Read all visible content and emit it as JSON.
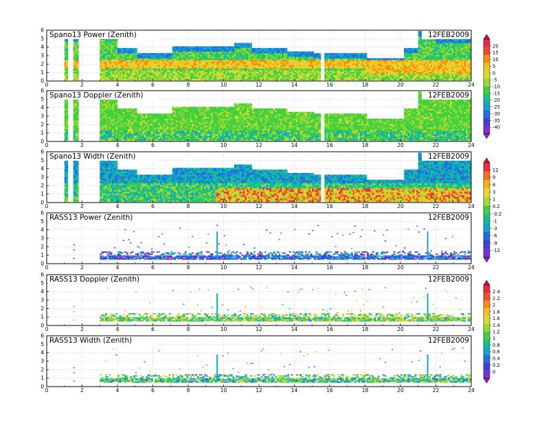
{
  "chart_data": [
    {
      "type": "heatmap",
      "title": "Spano13 Power (Zenith)",
      "date": "12FEB2009",
      "x_ticks": [
        "0",
        "2",
        "4",
        "6",
        "8",
        "10",
        "12",
        "14",
        "16",
        "18",
        "20",
        "22",
        "24"
      ],
      "y_ticks": [
        "0",
        "1",
        "2",
        "3",
        "4",
        "5",
        "6"
      ],
      "xlim": [
        0,
        24
      ],
      "ylim": [
        0,
        6
      ],
      "grid": true,
      "colorbar_group": 0
    },
    {
      "type": "heatmap",
      "title": "Spano13 Doppler (Zenith)",
      "date": "12FEB2009",
      "x_ticks": [
        "0",
        "2",
        "4",
        "6",
        "8",
        "10",
        "12",
        "14",
        "16",
        "18",
        "20",
        "22",
        "24"
      ],
      "y_ticks": [
        "0",
        "1",
        "2",
        "3",
        "4",
        "5",
        "6"
      ],
      "xlim": [
        0,
        24
      ],
      "ylim": [
        0,
        6
      ],
      "grid": true,
      "colorbar_group": 0
    },
    {
      "type": "heatmap",
      "title": "Spano13 Width (Zenith)",
      "date": "12FEB2009",
      "x_ticks": [
        "0",
        "2",
        "4",
        "6",
        "8",
        "10",
        "12",
        "14",
        "16",
        "18",
        "20",
        "22",
        "24"
      ],
      "y_ticks": [
        "0",
        "1",
        "2",
        "3",
        "4",
        "5",
        "6"
      ],
      "xlim": [
        0,
        24
      ],
      "ylim": [
        0,
        6
      ],
      "grid": true,
      "colorbar_group": 1
    },
    {
      "type": "heatmap",
      "title": "RASS13 Power (Zenith)",
      "date": "12FEB2009",
      "x_ticks": [
        "0",
        "2",
        "4",
        "6",
        "8",
        "10",
        "12",
        "14",
        "16",
        "18",
        "20",
        "22",
        "24"
      ],
      "y_ticks": [
        "0",
        "1",
        "2",
        "3",
        "4",
        "5",
        "6"
      ],
      "xlim": [
        0,
        24
      ],
      "ylim": [
        0,
        6
      ],
      "grid": true,
      "colorbar_group": 1
    },
    {
      "type": "heatmap",
      "title": "RASS13 Doppler (Zenith)",
      "date": "12FEB2009",
      "x_ticks": [
        "0",
        "2",
        "4",
        "6",
        "8",
        "10",
        "12",
        "14",
        "16",
        "18",
        "20",
        "22",
        "24"
      ],
      "y_ticks": [
        "0",
        "1",
        "2",
        "3",
        "4",
        "5",
        "6"
      ],
      "xlim": [
        0,
        24
      ],
      "ylim": [
        0,
        6
      ],
      "grid": true,
      "colorbar_group": 2
    },
    {
      "type": "heatmap",
      "title": "RASS13 Width (Zenith)",
      "date": "12FEB2009",
      "x_ticks": [
        "0",
        "2",
        "4",
        "6",
        "8",
        "10",
        "12",
        "14",
        "16",
        "18",
        "20",
        "22",
        "24"
      ],
      "y_ticks": [
        "0",
        "1",
        "2",
        "3",
        "4",
        "5",
        "6"
      ],
      "xlim": [
        0,
        24
      ],
      "ylim": [
        0,
        6
      ],
      "grid": true,
      "colorbar_group": 2
    }
  ],
  "colorbars": [
    {
      "labels": [
        "20",
        "15",
        "10",
        "5",
        "0",
        "-5",
        "-10",
        "-15",
        "-20",
        "-25",
        "-30",
        "-35",
        "-40"
      ],
      "colors": [
        "#c8143c",
        "#e0304a",
        "#f04828",
        "#f88c10",
        "#f8c020",
        "#d8dc30",
        "#98d830",
        "#40d040",
        "#18c090",
        "#10a8c8",
        "#2070e0",
        "#4040d8",
        "#8030d0",
        "#a020c8"
      ]
    },
    {
      "labels": [
        "12",
        "9",
        "6",
        "3",
        "1",
        "0.2",
        "-0.2",
        "-1",
        "-3",
        "-6",
        "-9",
        "-12"
      ],
      "colors": [
        "#c8143c",
        "#e83040",
        "#f07020",
        "#f8b018",
        "#e8d828",
        "#a8d830",
        "#40d040",
        "#18c090",
        "#10a8c8",
        "#2070e0",
        "#4040d8",
        "#8030d0",
        "#a020c8"
      ]
    },
    {
      "labels": [
        "2.4",
        "2.2",
        "2",
        "1.8",
        "1.6",
        "1.4",
        "1.2",
        "1",
        "0.8",
        "0.6",
        "0.4",
        "0.2",
        "0"
      ],
      "colors": [
        "#c8143c",
        "#e02c40",
        "#f05030",
        "#f88c10",
        "#f8c020",
        "#d8dc30",
        "#98d830",
        "#40d040",
        "#18c090",
        "#10a8c8",
        "#2070e0",
        "#4040d8",
        "#8030d0",
        "#a020c8"
      ]
    }
  ]
}
